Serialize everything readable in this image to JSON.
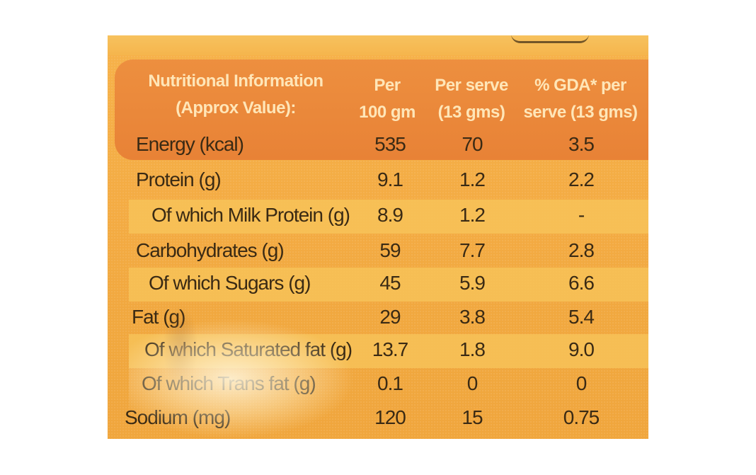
{
  "header": {
    "col1_line1": "Nutritional Information",
    "col1_line2": "(Approx Value):",
    "col2_line1": "Per",
    "col2_line2": "100 gm",
    "col3_line1": "Per serve",
    "col3_line2": "(13 gms)",
    "col4_line1": "% GDA* per",
    "col4_line2": "serve (13 gms)"
  },
  "rows": [
    {
      "name": "Energy (kcal)",
      "per100": "535",
      "perServe": "70",
      "gda": "3.5"
    },
    {
      "name": "Protein (g)",
      "per100": "9.1",
      "perServe": "1.2",
      "gda": "2.2"
    },
    {
      "name": "Of which Milk Protein (g)",
      "per100": "8.9",
      "perServe": "1.2",
      "gda": "-"
    },
    {
      "name": "Carbohydrates (g)",
      "per100": "59",
      "perServe": "7.7",
      "gda": "2.8"
    },
    {
      "name": "Of which Sugars (g)",
      "per100": "45",
      "perServe": "5.9",
      "gda": "6.6"
    },
    {
      "name": "Fat (g)",
      "per100": "29",
      "perServe": "3.8",
      "gda": "5.4"
    },
    {
      "name": "Of which Saturated fat (g)",
      "per100": "13.7",
      "perServe": "1.8",
      "gda": "9.0"
    },
    {
      "name": "Of which Trans fat (g)",
      "per100": "0.1",
      "perServe": "0",
      "gda": "0"
    },
    {
      "name": "Sodium (mg)",
      "per100": "120",
      "perServe": "15",
      "gda": "0.75"
    }
  ],
  "colors": {
    "label_bg": "#f4ac44",
    "header_band": "#e88236",
    "header_text": "#ffe6b8",
    "body_text": "#3a2a14",
    "stripe": "#f7c258"
  }
}
